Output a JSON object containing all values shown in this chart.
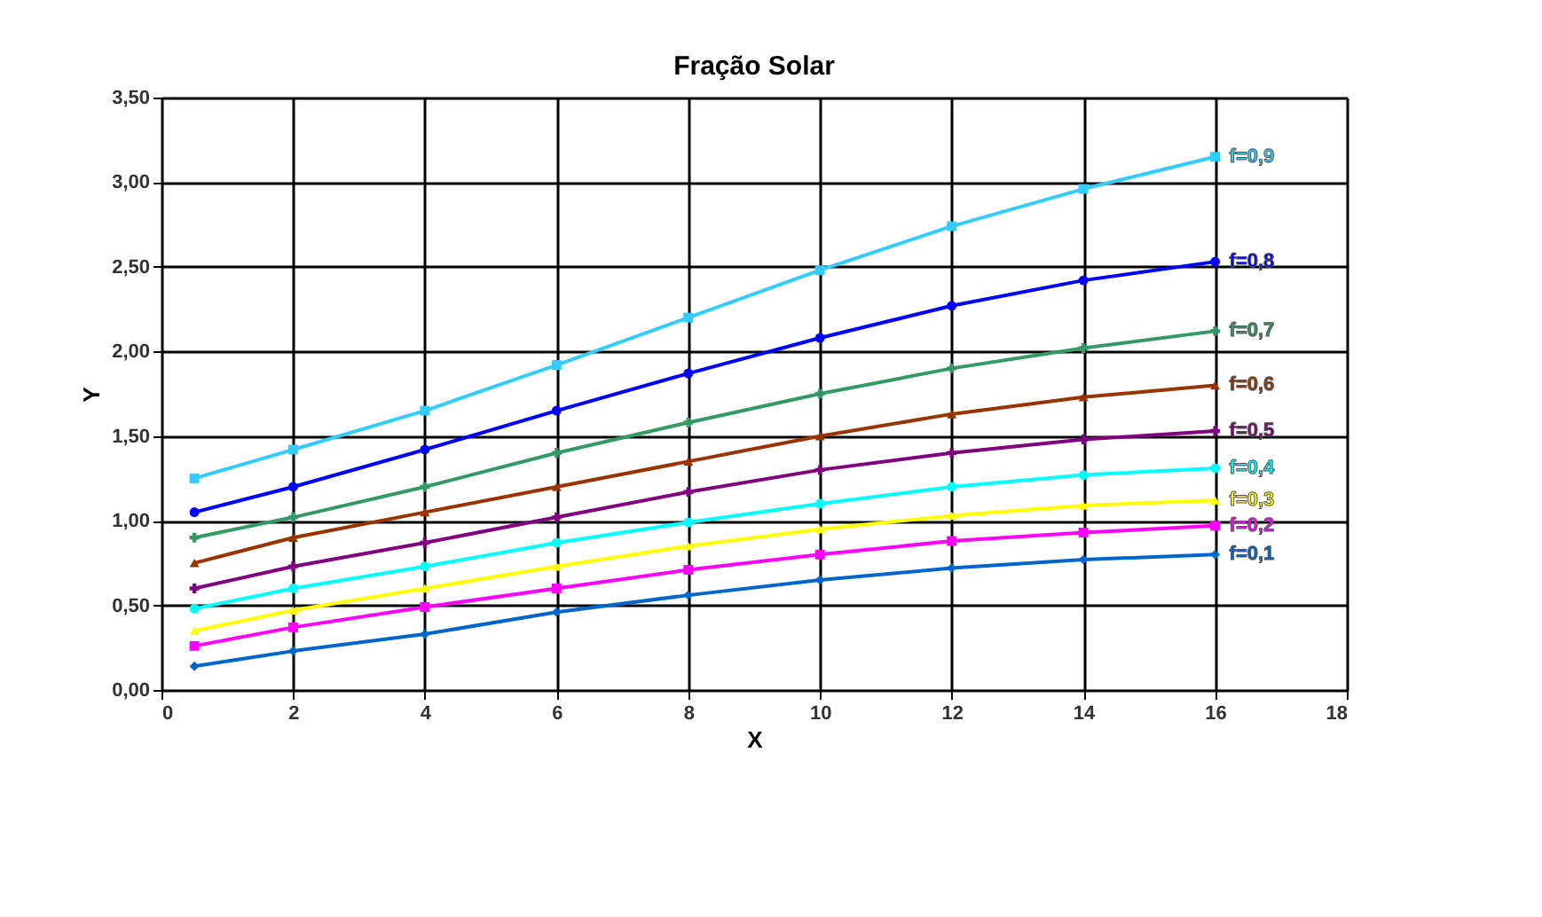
{
  "chart_data": {
    "type": "line",
    "title": "Fração Solar",
    "xlabel": "X",
    "ylabel": "Y",
    "x": [
      0.5,
      2,
      4,
      6,
      8,
      10,
      12,
      14,
      16
    ],
    "series": [
      {
        "name": "f=0,9",
        "color": "#33ccff",
        "marker": "square",
        "values": [
          1.25,
          1.42,
          1.65,
          1.92,
          2.2,
          2.48,
          2.74,
          2.96,
          3.15
        ]
      },
      {
        "name": "f=0,8",
        "color": "#0000ff",
        "marker": "circle",
        "values": [
          1.05,
          1.2,
          1.42,
          1.65,
          1.87,
          2.08,
          2.27,
          2.42,
          2.53
        ]
      },
      {
        "name": "f=0,7",
        "color": "#339966",
        "marker": "cross",
        "values": [
          0.9,
          1.02,
          1.2,
          1.4,
          1.58,
          1.75,
          1.9,
          2.02,
          2.12
        ]
      },
      {
        "name": "f=0,6",
        "color": "#993300",
        "marker": "triangle",
        "values": [
          0.75,
          0.9,
          1.05,
          1.2,
          1.35,
          1.5,
          1.63,
          1.73,
          1.8
        ]
      },
      {
        "name": "f=0,5",
        "color": "#800080",
        "marker": "cross",
        "values": [
          0.6,
          0.73,
          0.87,
          1.02,
          1.17,
          1.3,
          1.4,
          1.48,
          1.53
        ]
      },
      {
        "name": "f=0,4",
        "color": "#00ffff",
        "marker": "circle",
        "values": [
          0.48,
          0.6,
          0.73,
          0.87,
          0.99,
          1.1,
          1.2,
          1.27,
          1.31
        ]
      },
      {
        "name": "f=0,3",
        "color": "#ffff00",
        "marker": "triangle",
        "values": [
          0.35,
          0.47,
          0.6,
          0.73,
          0.85,
          0.95,
          1.03,
          1.09,
          1.12
        ]
      },
      {
        "name": "f=0,2",
        "color": "#ff00ff",
        "marker": "square",
        "values": [
          0.26,
          0.37,
          0.49,
          0.6,
          0.71,
          0.8,
          0.88,
          0.93,
          0.97
        ]
      },
      {
        "name": "f=0,1",
        "color": "#0066cc",
        "marker": "diamond",
        "values": [
          0.14,
          0.23,
          0.33,
          0.46,
          0.56,
          0.65,
          0.72,
          0.77,
          0.8
        ]
      }
    ],
    "xlim": [
      0,
      18
    ],
    "xticks": [
      0,
      2,
      4,
      6,
      8,
      10,
      12,
      14,
      16,
      18
    ],
    "ylim": [
      0,
      3.5
    ],
    "yticks": [
      {
        "value": 0,
        "label": "0,00"
      },
      {
        "value": 0.5,
        "label": "0,50"
      },
      {
        "value": 1,
        "label": "1,00"
      },
      {
        "value": 1.5,
        "label": "1,50"
      },
      {
        "value": 2,
        "label": "2,00"
      },
      {
        "value": 2.5,
        "label": "2,50"
      },
      {
        "value": 3,
        "label": "3,00"
      },
      {
        "value": 3.5,
        "label": "3,50"
      }
    ],
    "grid": true,
    "line_style": "solid"
  }
}
